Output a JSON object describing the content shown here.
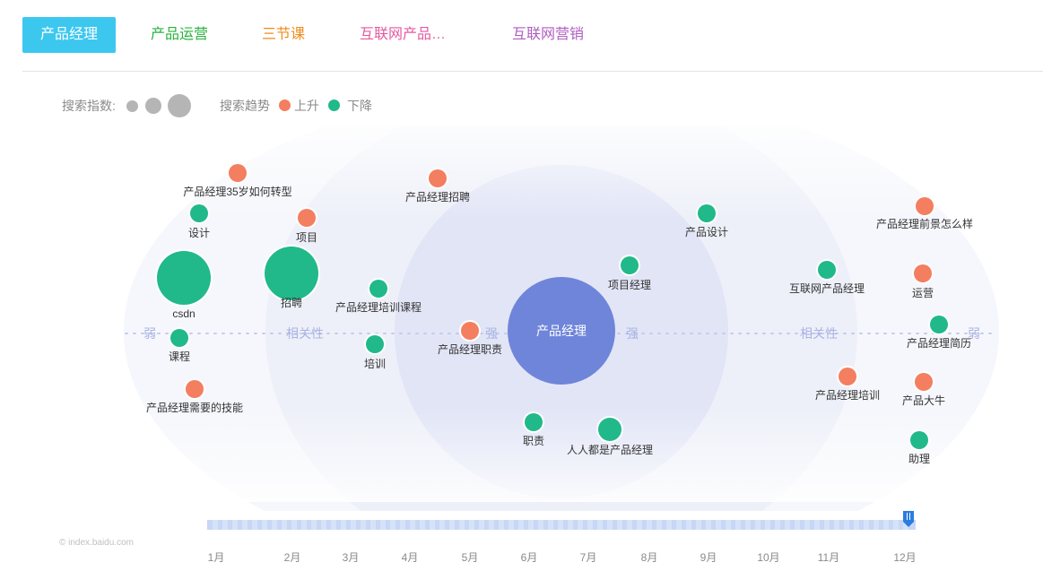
{
  "tabs": [
    {
      "label": "产品经理",
      "color": "#ffffff",
      "active": true
    },
    {
      "label": "产品运营",
      "color": "#27b13c",
      "active": false
    },
    {
      "label": "三节课",
      "color": "#f08b1c",
      "active": false
    },
    {
      "label": "互联网产品…",
      "color": "#e55aa0",
      "active": false
    },
    {
      "label": "互联网营销",
      "color": "#b05ec0",
      "active": false
    }
  ],
  "legend": {
    "index_label": "搜索指数:",
    "trend_label": "搜索趋势",
    "up_label": "上升",
    "down_label": "下降",
    "up_color": "#f47e60",
    "down_color": "#21b98a",
    "size_color": "#b5b5b5"
  },
  "graph": {
    "center": "产品经理",
    "center_color": "#6f85d9",
    "axis": {
      "weak": "弱",
      "relevance": "相关性",
      "strong": "强"
    },
    "nodes": [
      {
        "label": "产品经理35岁如何转型",
        "trend": "up",
        "size": "small"
      },
      {
        "label": "设计",
        "trend": "down",
        "size": "small"
      },
      {
        "label": "csdn",
        "trend": "down",
        "size": "large"
      },
      {
        "label": "课程",
        "trend": "down",
        "size": "small"
      },
      {
        "label": "产品经理需要的技能",
        "trend": "up",
        "size": "small"
      },
      {
        "label": "项目",
        "trend": "up",
        "size": "small"
      },
      {
        "label": "招聘",
        "trend": "down",
        "size": "large"
      },
      {
        "label": "产品经理培训课程",
        "trend": "down",
        "size": "small"
      },
      {
        "label": "培训",
        "trend": "down",
        "size": "small"
      },
      {
        "label": "产品经理招聘",
        "trend": "up",
        "size": "small"
      },
      {
        "label": "产品经理职责",
        "trend": "up",
        "size": "small"
      },
      {
        "label": "职责",
        "trend": "down",
        "size": "small"
      },
      {
        "label": "人人都是产品经理",
        "trend": "down",
        "size": "medium"
      },
      {
        "label": "项目经理",
        "trend": "down",
        "size": "small"
      },
      {
        "label": "产品设计",
        "trend": "down",
        "size": "small"
      },
      {
        "label": "互联网产品经理",
        "trend": "down",
        "size": "small"
      },
      {
        "label": "产品经理培训",
        "trend": "up",
        "size": "small"
      },
      {
        "label": "产品经理前景怎么样",
        "trend": "up",
        "size": "small"
      },
      {
        "label": "运营",
        "trend": "up",
        "size": "small"
      },
      {
        "label": "产品经理简历",
        "trend": "down",
        "size": "small"
      },
      {
        "label": "产品大牛",
        "trend": "up",
        "size": "small"
      },
      {
        "label": "助理",
        "trend": "down",
        "size": "small"
      }
    ]
  },
  "timeline": {
    "months": [
      "1月",
      "2月",
      "3月",
      "4月",
      "5月",
      "6月",
      "7月",
      "8月",
      "9月",
      "10月",
      "11月",
      "12月"
    ],
    "selected": "12月",
    "handle_icon": "slider-handle-icon"
  },
  "watermark": "© index.baidu.com"
}
